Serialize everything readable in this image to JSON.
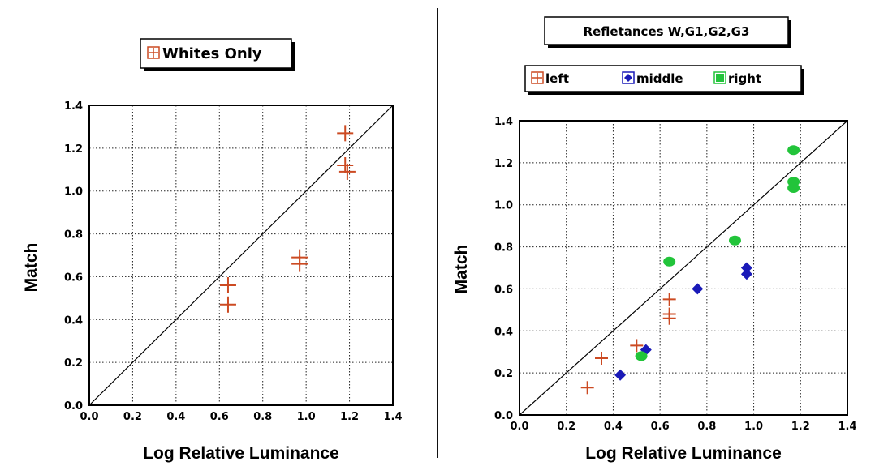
{
  "colors": {
    "left": "#cc4a22",
    "middle": "#1a1ab8",
    "right": "#22c43a",
    "axis": "#000000"
  },
  "chart_data": [
    {
      "type": "scatter",
      "legend_title": "Whites Only",
      "xlabel": "Log Relative Luminance",
      "ylabel": "Match",
      "xlim": [
        0.0,
        1.4
      ],
      "ylim": [
        0.0,
        1.4
      ],
      "ticks": [
        "0.0",
        "0.2",
        "0.4",
        "0.6",
        "0.8",
        "1.0",
        "1.2",
        "1.4"
      ],
      "grid": true,
      "reference_line": "y = x",
      "series": [
        {
          "name": "Whites Only",
          "marker": "plus",
          "color": "#cc4a22",
          "points": [
            {
              "x": 0.64,
              "y": 0.56
            },
            {
              "x": 0.64,
              "y": 0.47
            },
            {
              "x": 0.97,
              "y": 0.69
            },
            {
              "x": 0.97,
              "y": 0.66
            },
            {
              "x": 1.18,
              "y": 1.27
            },
            {
              "x": 1.18,
              "y": 1.12
            },
            {
              "x": 1.19,
              "y": 1.09
            }
          ]
        }
      ]
    },
    {
      "type": "scatter",
      "title": "Refletances W,G1,G2,G3",
      "xlabel": "Log Relative Luminance",
      "ylabel": "Match",
      "xlim": [
        0.0,
        1.4
      ],
      "ylim": [
        0.0,
        1.4
      ],
      "ticks": [
        "0.0",
        "0.2",
        "0.4",
        "0.6",
        "0.8",
        "1.0",
        "1.2",
        "1.4"
      ],
      "grid": true,
      "reference_line": "y = x",
      "legend": [
        "left",
        "middle",
        "right"
      ],
      "series": [
        {
          "name": "left",
          "marker": "plus",
          "color": "#cc4a22",
          "points": [
            {
              "x": 0.29,
              "y": 0.13
            },
            {
              "x": 0.35,
              "y": 0.27
            },
            {
              "x": 0.5,
              "y": 0.33
            },
            {
              "x": 0.64,
              "y": 0.55
            },
            {
              "x": 0.64,
              "y": 0.48
            },
            {
              "x": 0.64,
              "y": 0.46
            }
          ]
        },
        {
          "name": "middle",
          "marker": "diamond",
          "color": "#1a1ab8",
          "points": [
            {
              "x": 0.43,
              "y": 0.19
            },
            {
              "x": 0.54,
              "y": 0.31
            },
            {
              "x": 0.76,
              "y": 0.6
            },
            {
              "x": 0.97,
              "y": 0.7
            },
            {
              "x": 0.97,
              "y": 0.67
            }
          ]
        },
        {
          "name": "right",
          "marker": "circle",
          "color": "#22c43a",
          "points": [
            {
              "x": 0.52,
              "y": 0.28
            },
            {
              "x": 0.64,
              "y": 0.73
            },
            {
              "x": 0.92,
              "y": 0.83
            },
            {
              "x": 1.17,
              "y": 1.26
            },
            {
              "x": 1.17,
              "y": 1.11
            },
            {
              "x": 1.17,
              "y": 1.08
            }
          ]
        }
      ]
    }
  ]
}
